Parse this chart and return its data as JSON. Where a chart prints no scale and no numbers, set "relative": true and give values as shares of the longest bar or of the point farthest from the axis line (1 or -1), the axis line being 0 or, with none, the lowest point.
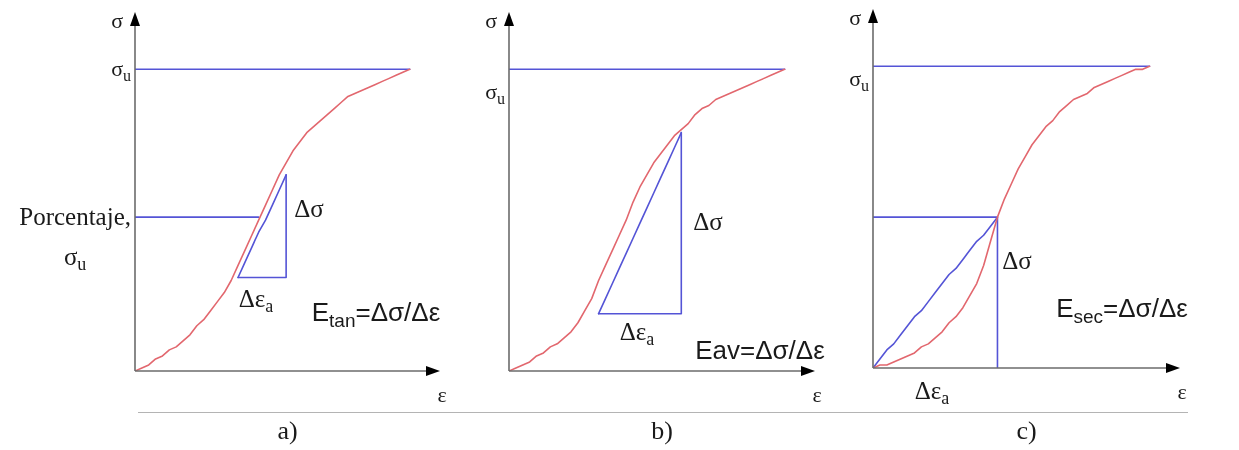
{
  "chart_data": [
    {
      "type": "line",
      "title": "a)",
      "xlabel": "ε",
      "ylabel": "σ",
      "relative": true,
      "categories": [
        null,
        null,
        null,
        null,
        null,
        null,
        null,
        null,
        null,
        null,
        null,
        null,
        null,
        null,
        null,
        null,
        null,
        null,
        null,
        null,
        null,
        null,
        null,
        null,
        null,
        null,
        null,
        null,
        null,
        null,
        null,
        null,
        null,
        null,
        null,
        null,
        null,
        null,
        null,
        null,
        null
      ],
      "series": [
        {
          "color": "#e2676e",
          "values": [
            0,
            0.01,
            0.02,
            0.04,
            0.05,
            0.07,
            0.08,
            0.1,
            0.12,
            0.15,
            0.17,
            0.2,
            0.23,
            0.26,
            0.3,
            0.35,
            0.4,
            0.45,
            0.5,
            0.55,
            0.6,
            0.65,
            0.69,
            0.73,
            0.76,
            0.79,
            0.81,
            0.83,
            0.85,
            0.87,
            0.89,
            0.91,
            0.92,
            0.93,
            0.94,
            0.95,
            0.96,
            0.97,
            0.98,
            0.99,
            1
          ]
        },
        {
          "color": "#5454d6",
          "values": [
            1,
            1,
            1,
            1,
            1,
            1,
            1,
            1,
            1,
            1,
            1,
            1,
            1,
            1,
            1,
            1,
            1,
            1,
            1,
            1,
            1,
            1,
            1,
            1,
            1,
            1,
            1,
            1,
            1,
            1,
            1,
            1,
            1,
            1,
            1,
            1,
            1,
            1,
            1,
            1,
            1
          ]
        },
        {
          "color": "#5454d6",
          "values": [
            0.51,
            0.51,
            0.51,
            0.51,
            0.51,
            0.51,
            0.51,
            0.51,
            0.51,
            0.51,
            0.51,
            0.51,
            0.51,
            0.51,
            0.51,
            0.51,
            0.51,
            0.51,
            0.51,
            null,
            null,
            null,
            null,
            null,
            null,
            null,
            null,
            null,
            null,
            null,
            null,
            null,
            null,
            null,
            null,
            null,
            null,
            null,
            null,
            null,
            null
          ]
        },
        {
          "type": "step",
          "color": "#5454d6",
          "values": [
            null,
            null,
            null,
            null,
            null,
            null,
            null,
            null,
            null,
            null,
            null,
            null,
            null,
            null,
            null,
            0.31,
            0.31,
            0.31,
            0.31,
            0.31,
            0.31,
            0.31,
            0.65,
            null,
            null,
            null,
            null,
            null,
            null,
            null,
            null,
            null,
            null,
            null,
            null,
            null,
            null,
            null,
            null,
            null,
            null
          ]
        },
        {
          "color": "#5454d6",
          "values": [
            null,
            null,
            null,
            null,
            null,
            null,
            null,
            null,
            null,
            null,
            null,
            null,
            null,
            null,
            null,
            0.31,
            0.36,
            0.41,
            0.46,
            0.5,
            0.55,
            0.6,
            0.65,
            null,
            null,
            null,
            null,
            null,
            null,
            null,
            null,
            null,
            null,
            null,
            null,
            null,
            null,
            null,
            null,
            null,
            null
          ]
        }
      ],
      "annotations": [
        "σ$_{u}$",
        "Porcentaje, σ$_{u}$",
        "Δσ",
        "Δε$_{a}$",
        "E$_{tan}$=Δσ/Δε"
      ]
    },
    {
      "type": "line",
      "title": "b)",
      "xlabel": "ε",
      "ylabel": "σ",
      "relative": true,
      "categories": [
        null,
        null,
        null,
        null,
        null,
        null,
        null,
        null,
        null,
        null,
        null,
        null,
        null,
        null,
        null,
        null,
        null,
        null,
        null,
        null,
        null,
        null,
        null,
        null,
        null,
        null,
        null,
        null,
        null,
        null,
        null,
        null,
        null,
        null,
        null,
        null,
        null,
        null,
        null,
        null,
        null
      ],
      "series": [
        {
          "color": "#e2676e",
          "values": [
            0,
            0.01,
            0.02,
            0.03,
            0.05,
            0.06,
            0.08,
            0.09,
            0.11,
            0.13,
            0.16,
            0.2,
            0.24,
            0.3,
            0.35,
            0.4,
            0.45,
            0.5,
            0.56,
            0.61,
            0.65,
            0.69,
            0.72,
            0.75,
            0.78,
            0.8,
            0.82,
            0.85,
            0.87,
            0.88,
            0.9,
            0.91,
            0.92,
            0.93,
            0.94,
            0.95,
            0.96,
            0.97,
            0.98,
            0.99,
            1
          ]
        },
        {
          "color": "#5454d6",
          "values": [
            1,
            1,
            1,
            1,
            1,
            1,
            1,
            1,
            1,
            1,
            1,
            1,
            1,
            1,
            1,
            1,
            1,
            1,
            1,
            1,
            1,
            1,
            1,
            1,
            1,
            1,
            1,
            1,
            1,
            1,
            1,
            1,
            1,
            1,
            1,
            1,
            1,
            1,
            1,
            1,
            1
          ]
        },
        {
          "type": "step",
          "color": "#5454d6",
          "values": [
            null,
            null,
            null,
            null,
            null,
            null,
            null,
            null,
            null,
            null,
            null,
            null,
            null,
            0.19,
            0.19,
            0.19,
            0.19,
            0.19,
            0.19,
            0.19,
            0.19,
            0.19,
            0.19,
            0.19,
            0.19,
            0.79,
            null,
            null,
            null,
            null,
            null,
            null,
            null,
            null,
            null,
            null,
            null,
            null,
            null,
            null,
            null
          ]
        },
        {
          "color": "#5454d6",
          "values": [
            null,
            null,
            null,
            null,
            null,
            null,
            null,
            null,
            null,
            null,
            null,
            null,
            null,
            0.19,
            0.24,
            0.29,
            0.34,
            0.39,
            0.44,
            0.49,
            0.54,
            0.59,
            0.64,
            0.69,
            0.74,
            0.79,
            null,
            null,
            null,
            null,
            null,
            null,
            null,
            null,
            null,
            null,
            null,
            null,
            null,
            null,
            null
          ]
        }
      ],
      "annotations": [
        "σ$_{u}$",
        "Δσ",
        "Δε$_{a}$",
        "Eav=Δσ/Δε"
      ]
    },
    {
      "type": "line",
      "title": "c)",
      "xlabel": "ε",
      "ylabel": "σ",
      "relative": true,
      "categories": [
        null,
        null,
        null,
        null,
        null,
        null,
        null,
        null,
        null,
        null,
        null,
        null,
        null,
        null,
        null,
        null,
        null,
        null,
        null,
        null,
        null,
        null,
        null,
        null,
        null,
        null,
        null,
        null,
        null,
        null,
        null,
        null,
        null,
        null,
        null,
        null,
        null,
        null,
        null,
        null,
        null
      ],
      "series": [
        {
          "color": "#e2676e",
          "values": [
            0,
            0.01,
            0.01,
            0.02,
            0.03,
            0.04,
            0.05,
            0.07,
            0.08,
            0.1,
            0.12,
            0.15,
            0.17,
            0.2,
            0.24,
            0.28,
            0.34,
            0.42,
            0.5,
            0.56,
            0.61,
            0.66,
            0.7,
            0.74,
            0.77,
            0.8,
            0.82,
            0.85,
            0.87,
            0.89,
            0.9,
            0.91,
            0.93,
            0.94,
            0.95,
            0.96,
            0.97,
            0.98,
            0.99,
            0.99,
            1
          ]
        },
        {
          "color": "#5454d6",
          "values": [
            1,
            1,
            1,
            1,
            1,
            1,
            1,
            1,
            1,
            1,
            1,
            1,
            1,
            1,
            1,
            1,
            1,
            1,
            1,
            1,
            1,
            1,
            1,
            1,
            1,
            1,
            1,
            1,
            1,
            1,
            1,
            1,
            1,
            1,
            1,
            1,
            1,
            1,
            1,
            1,
            1
          ]
        },
        {
          "type": "step",
          "color": "#5454d6",
          "values": [
            0.5,
            0.5,
            0.5,
            0.5,
            0.5,
            0.5,
            0.5,
            0.5,
            0.5,
            0.5,
            0.5,
            0.5,
            0.5,
            0.5,
            0.5,
            0.5,
            0.5,
            0.5,
            0,
            null,
            null,
            null,
            null,
            null,
            null,
            null,
            null,
            null,
            null,
            null,
            null,
            null,
            null,
            null,
            null,
            null,
            null,
            null,
            null,
            null,
            null
          ]
        },
        {
          "color": "#5454d6",
          "values": [
            0,
            0.03,
            0.06,
            0.08,
            0.11,
            0.14,
            0.17,
            0.19,
            0.22,
            0.25,
            0.28,
            0.31,
            0.33,
            0.36,
            0.39,
            0.42,
            0.44,
            0.47,
            0.5,
            null,
            null,
            null,
            null,
            null,
            null,
            null,
            null,
            null,
            null,
            null,
            null,
            null,
            null,
            null,
            null,
            null,
            null,
            null,
            null,
            null,
            null
          ]
        }
      ],
      "annotations": [
        "σ$_{u}$",
        "Δσ",
        "E$_{sec}$=Δσ/Δε",
        "Δε$_{a}$"
      ]
    }
  ]
}
